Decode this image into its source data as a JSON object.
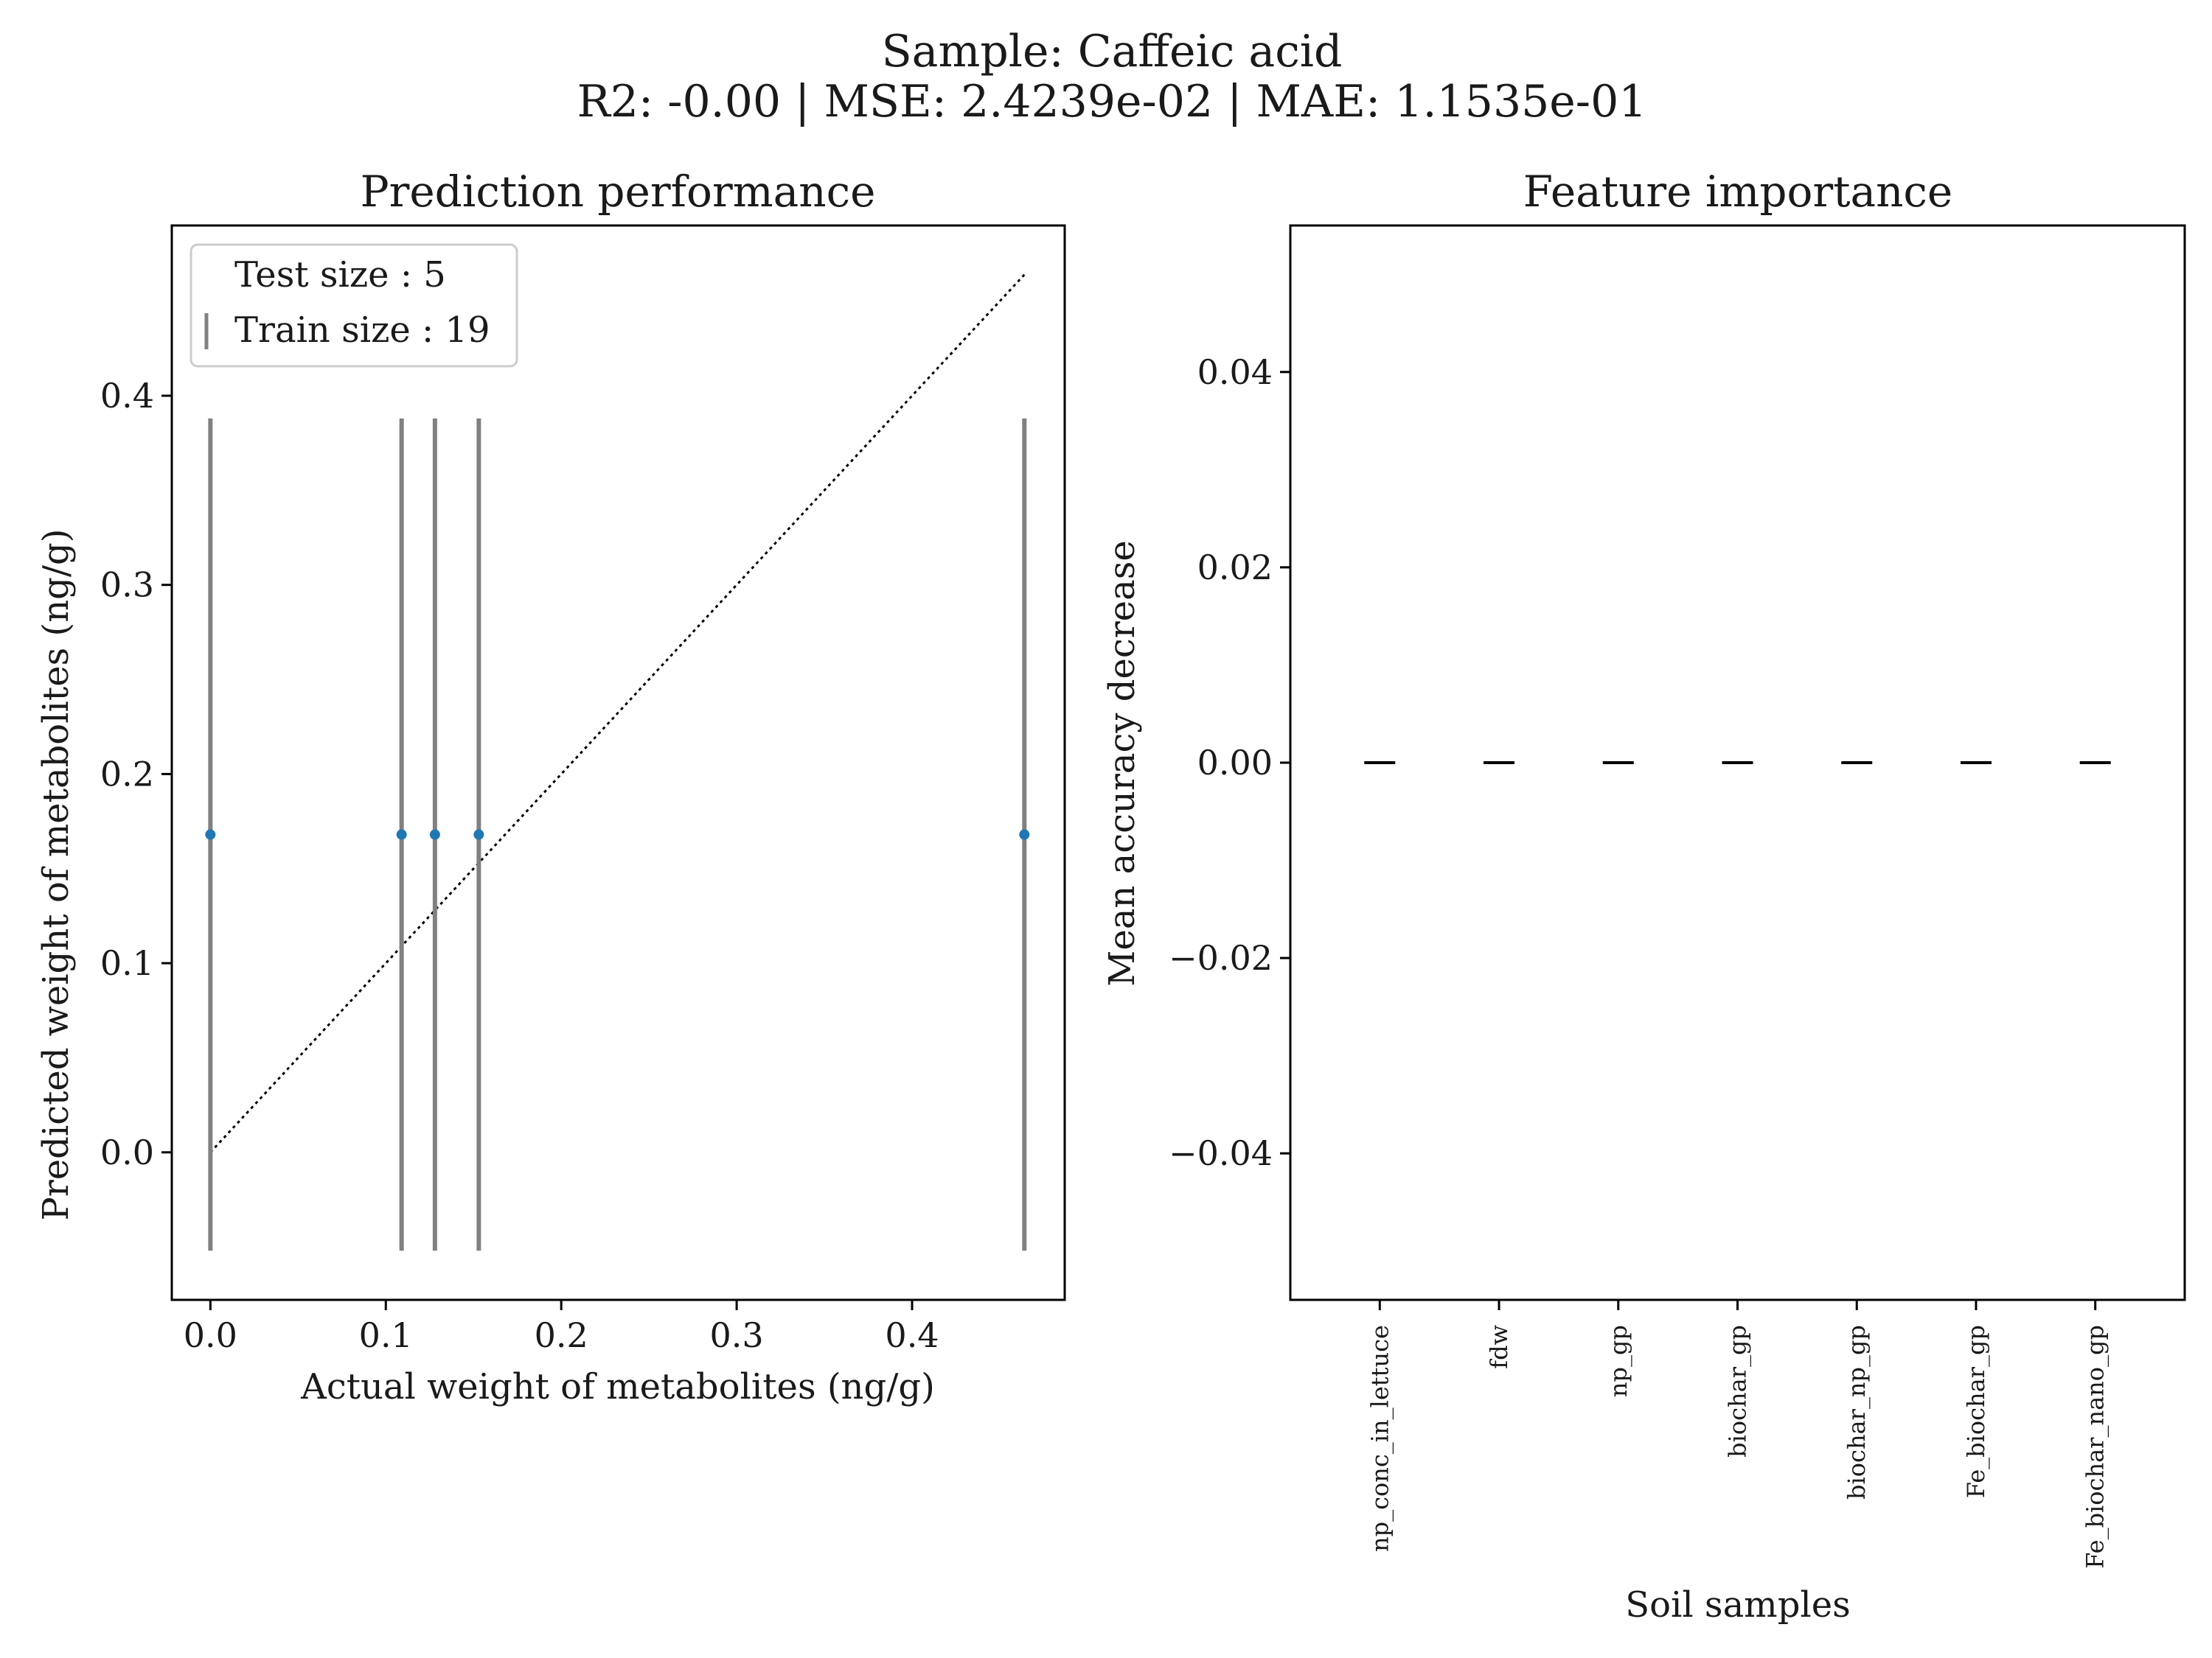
{
  "figure": {
    "suptitle_line1": "Sample: Caffeic acid",
    "suptitle_line2": "R2: -0.00 | MSE: 2.4239e-02 | MAE: 1.1535e-01"
  },
  "chart_data": [
    {
      "type": "scatter",
      "title": "Prediction performance",
      "xlabel": "Actual weight of metabolites (ng/g)",
      "ylabel": "Predicted weight of metabolites (ng/g)",
      "xlim": [
        -0.022,
        0.487
      ],
      "ylim": [
        -0.078,
        0.49
      ],
      "xticks": [
        0.0,
        0.1,
        0.2,
        0.3,
        0.4
      ],
      "xtick_labels": [
        "0.0",
        "0.1",
        "0.2",
        "0.3",
        "0.4"
      ],
      "yticks": [
        0.0,
        0.1,
        0.2,
        0.3,
        0.4
      ],
      "ytick_labels": [
        "0.0",
        "0.1",
        "0.2",
        "0.3",
        "0.4"
      ],
      "grid": false,
      "legend_position": "top-left",
      "legend": [
        "Test size : 5",
        "Train size : 19"
      ],
      "x": [
        0.0,
        0.109,
        0.128,
        0.153,
        0.464
      ],
      "y": [
        0.168,
        0.168,
        0.168,
        0.168,
        0.168
      ],
      "error_low": [
        -0.052,
        -0.052,
        -0.052,
        -0.052,
        -0.052
      ],
      "error_high": [
        0.388,
        0.388,
        0.388,
        0.388,
        0.388
      ],
      "identity_line": [
        0.0,
        0.464
      ],
      "colors": {
        "points": "#1f77b4",
        "errorbars": "#808080",
        "identity": "#000000"
      }
    },
    {
      "type": "bar",
      "title": "Feature importance",
      "xlabel": "Soil samples",
      "ylabel": "Mean accuracy decrease",
      "categories": [
        "np_conc_in_lettuce",
        "fdw",
        "np_gp",
        "biochar_gp",
        "biochar_np_gp",
        "Fe_biochar_gp",
        "Fe_biochar_nano_gp"
      ],
      "values": [
        0.0,
        0.0,
        0.0,
        0.0,
        0.0,
        0.0,
        0.0
      ],
      "ylim": [
        -0.055,
        0.055
      ],
      "yticks": [
        -0.04,
        -0.02,
        0.0,
        0.02,
        0.04
      ],
      "ytick_labels": [
        "−0.04",
        "−0.02",
        "0.00",
        "0.02",
        "0.04"
      ],
      "grid": false,
      "colors": {
        "marker": "#000000"
      }
    }
  ]
}
